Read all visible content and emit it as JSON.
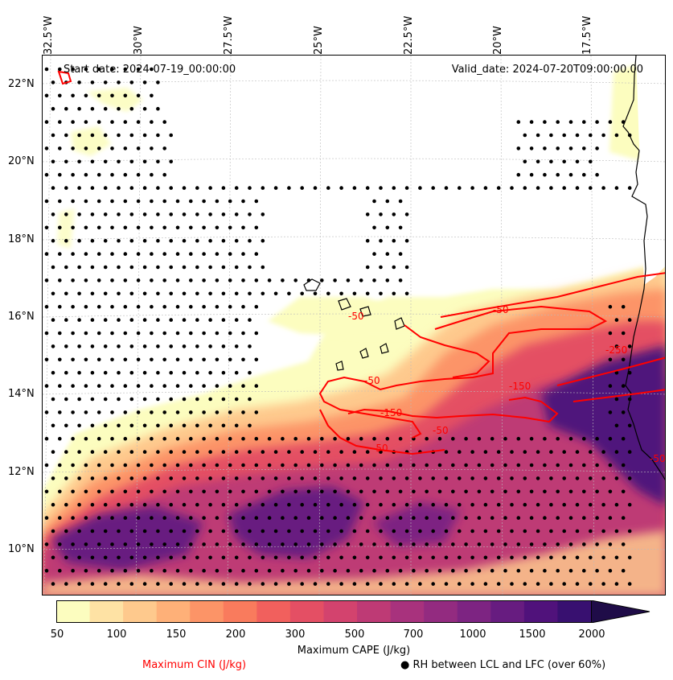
{
  "map": {
    "start_date": "Start date: 2024-07-19_00:00:00",
    "valid_date": "Valid_date: 2024-07-20T09:00:00.00",
    "lon_labels": [
      "32.5°W",
      "30°W",
      "27.5°W",
      "25°W",
      "22.5°W",
      "20°W",
      "17.5°W"
    ],
    "lat_labels": [
      "22°N",
      "20°N",
      "18°N",
      "16°N",
      "14°N",
      "12°N",
      "10°N"
    ],
    "contour_labels": [
      "-50",
      "-50",
      "-50",
      "-50",
      "-150",
      "-250",
      "-150",
      "-50",
      "-50"
    ]
  },
  "colorbar": {
    "title": "Maximum CAPE (J/kg)",
    "ticks": [
      "50",
      "100",
      "150",
      "200",
      "300",
      "500",
      "700",
      "1000",
      "1500",
      "2000"
    ],
    "colors": [
      "#fcfdbf",
      "#fee2a4",
      "#fec98d",
      "#feb078",
      "#fc9467",
      "#f97b5d",
      "#f1605d",
      "#e44f64",
      "#d3436e",
      "#be3a75",
      "#a8327d",
      "#932b80",
      "#7d2482",
      "#671c80",
      "#50127b",
      "#381070",
      "#1f0c48"
    ],
    "extend": "max"
  },
  "legend": {
    "cin_label": "Maximum CIN (J/kg)",
    "cin_color": "#ff0000",
    "rh_label": "RH between LCL and LFC (over 60%)",
    "rh_marker": "●"
  }
}
